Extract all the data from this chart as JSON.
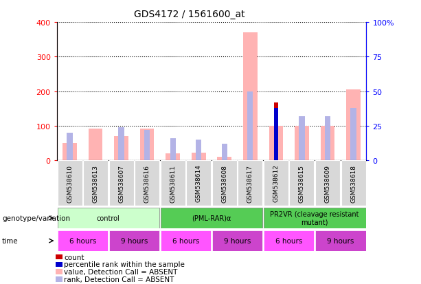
{
  "title": "GDS4172 / 1561600_at",
  "samples": [
    "GSM538610",
    "GSM538613",
    "GSM538607",
    "GSM538616",
    "GSM538611",
    "GSM538614",
    "GSM538608",
    "GSM538617",
    "GSM538612",
    "GSM538615",
    "GSM538609",
    "GSM538618"
  ],
  "value_absent": [
    50,
    92,
    70,
    92,
    20,
    22,
    10,
    370,
    100,
    100,
    100,
    205
  ],
  "rank_absent_pct": [
    20,
    0,
    24,
    22,
    16,
    15,
    12,
    50,
    0,
    32,
    32,
    38
  ],
  "count": [
    0,
    0,
    0,
    0,
    0,
    0,
    0,
    0,
    168,
    0,
    0,
    0
  ],
  "pct_rank": [
    0,
    0,
    0,
    0,
    0,
    0,
    0,
    0,
    38,
    0,
    0,
    0
  ],
  "ylim_left": [
    0,
    400
  ],
  "ylim_right": [
    0,
    100
  ],
  "yticks_left": [
    0,
    100,
    200,
    300,
    400
  ],
  "yticks_right": [
    0,
    25,
    50,
    75,
    100
  ],
  "yticklabels_left": [
    "0",
    "100",
    "200",
    "300",
    "400"
  ],
  "yticklabels_right": [
    "0",
    "25",
    "50",
    "75",
    "100%"
  ],
  "color_value_absent": "#ffb3b3",
  "color_rank_absent": "#b3b3e6",
  "color_count": "#cc0000",
  "color_pct_rank": "#0000cc",
  "genotype_groups": [
    {
      "label": "control",
      "start": 0,
      "end": 4,
      "color": "#ccffcc"
    },
    {
      "label": "(PML-RAR)α",
      "start": 4,
      "end": 8,
      "color": "#55cc55"
    },
    {
      "label": "PR2VR (cleavage resistant\nmutant)",
      "start": 8,
      "end": 12,
      "color": "#55cc55"
    }
  ],
  "time_groups": [
    {
      "label": "6 hours",
      "start": 0,
      "end": 2,
      "color": "#ff55ff"
    },
    {
      "label": "9 hours",
      "start": 2,
      "end": 4,
      "color": "#cc44cc"
    },
    {
      "label": "6 hours",
      "start": 4,
      "end": 6,
      "color": "#ff55ff"
    },
    {
      "label": "9 hours",
      "start": 6,
      "end": 8,
      "color": "#cc44cc"
    },
    {
      "label": "6 hours",
      "start": 8,
      "end": 10,
      "color": "#ff55ff"
    },
    {
      "label": "9 hours",
      "start": 10,
      "end": 12,
      "color": "#cc44cc"
    }
  ],
  "legend_items": [
    {
      "label": "count",
      "color": "#cc0000"
    },
    {
      "label": "percentile rank within the sample",
      "color": "#0000cc"
    },
    {
      "label": "value, Detection Call = ABSENT",
      "color": "#ffb3b3"
    },
    {
      "label": "rank, Detection Call = ABSENT",
      "color": "#b3b3e6"
    }
  ],
  "background_color": "#ffffff"
}
